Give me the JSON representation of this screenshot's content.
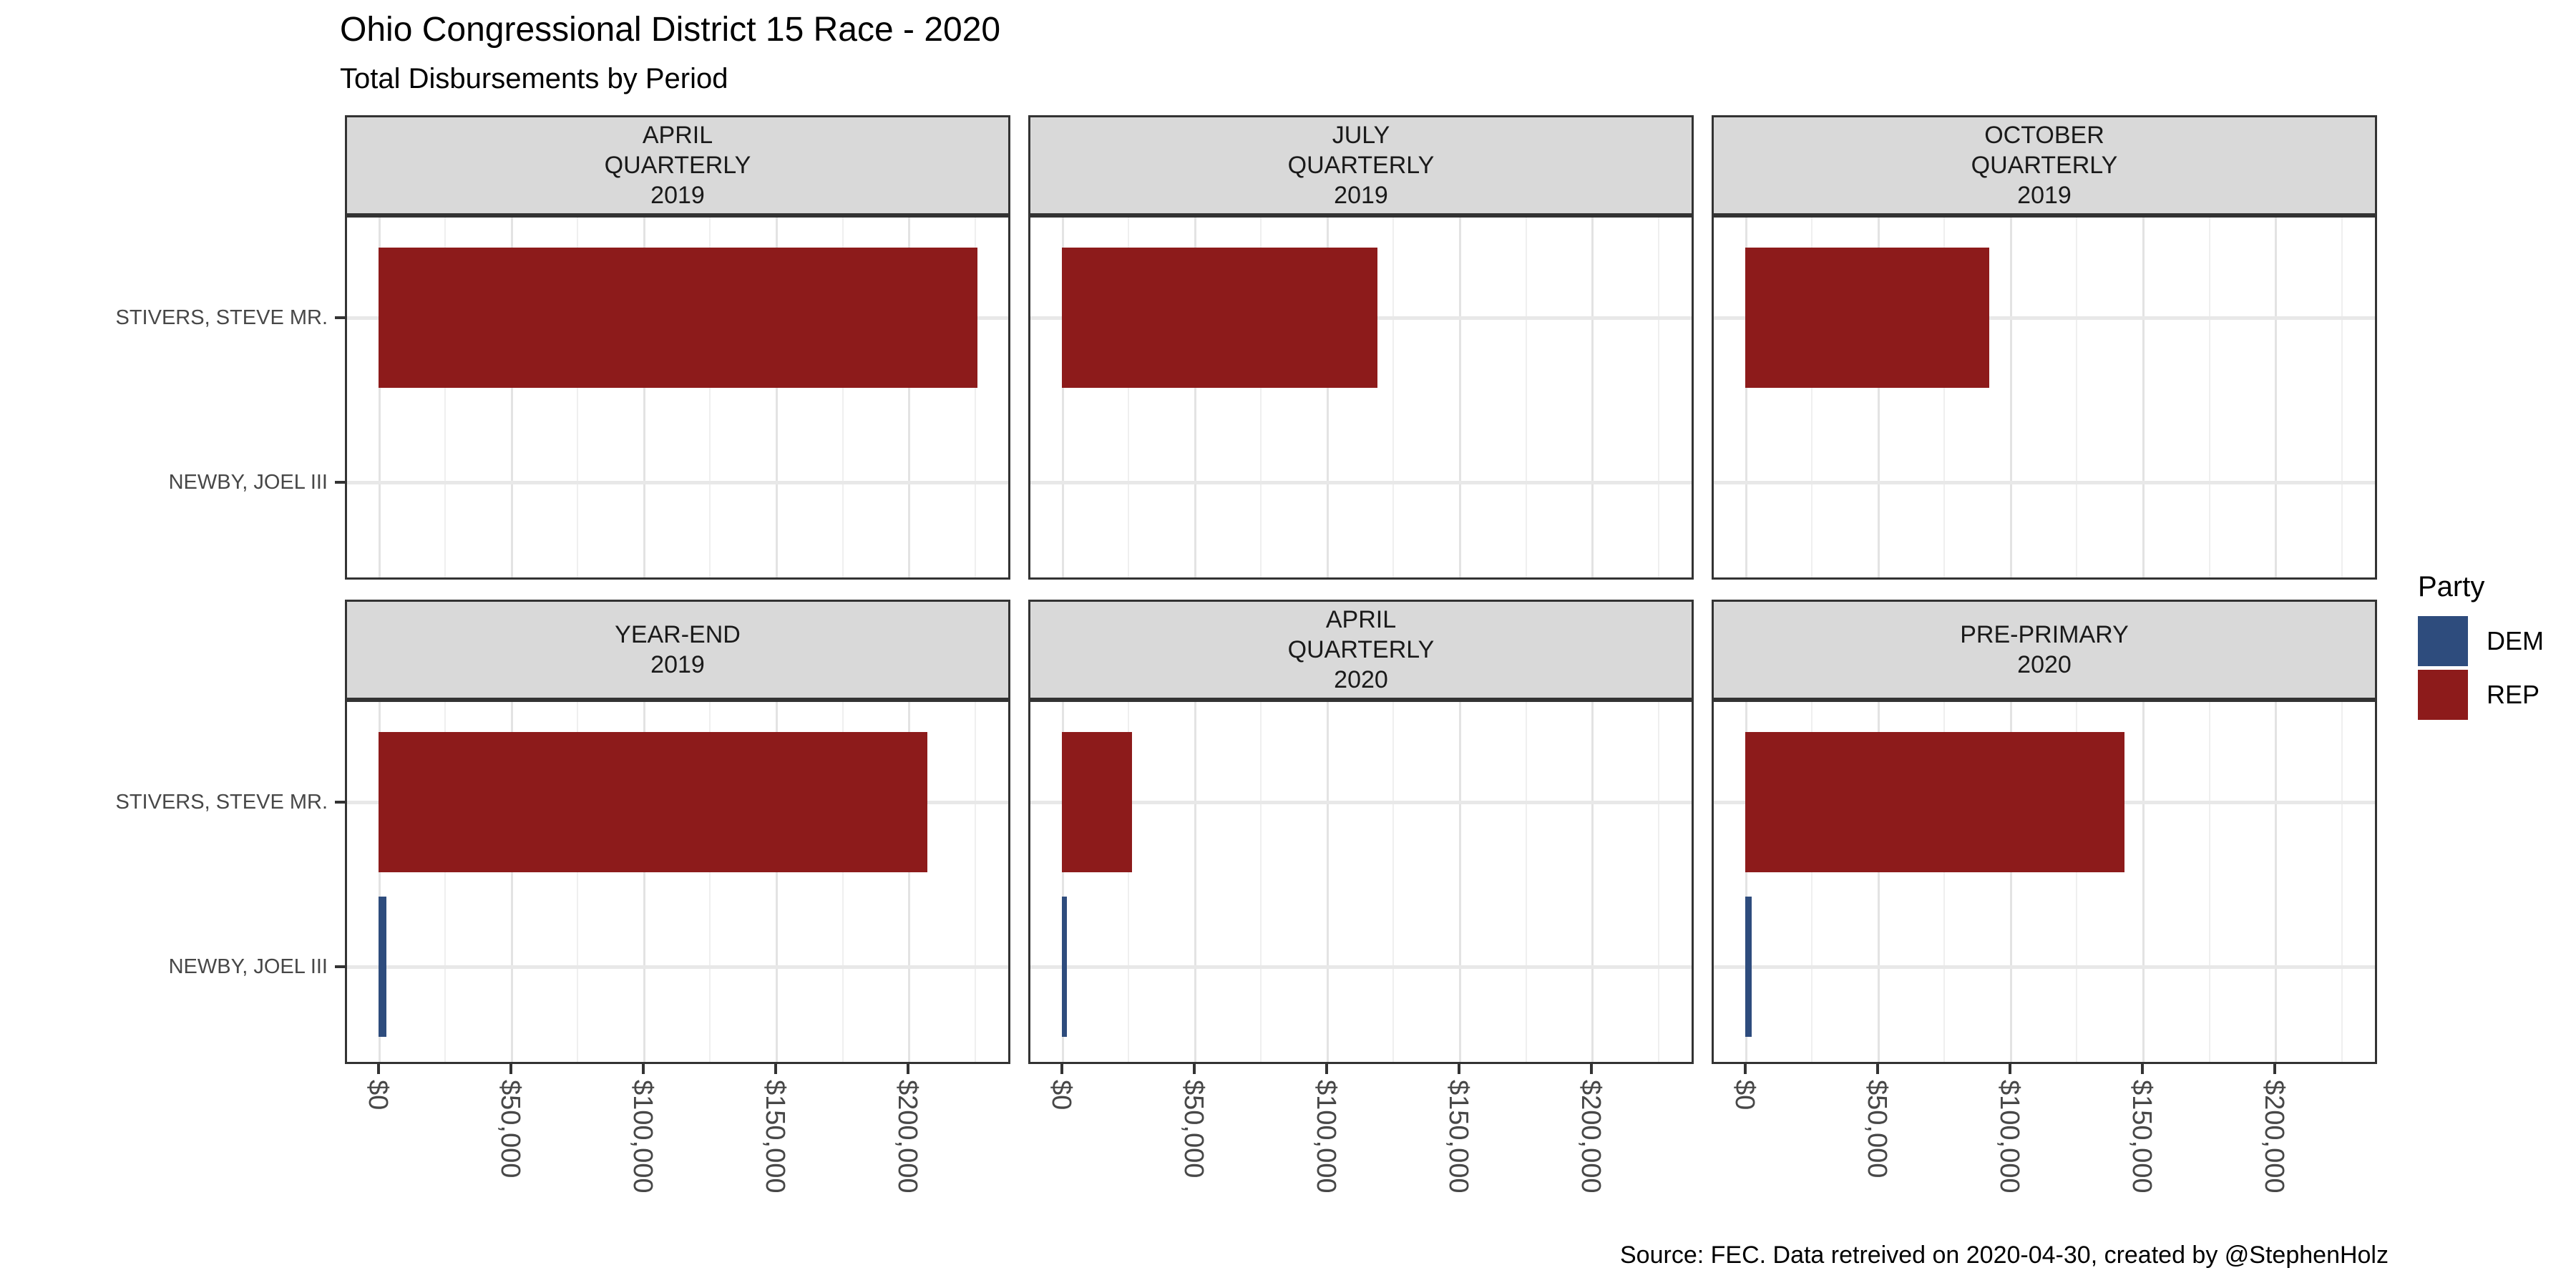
{
  "header": {
    "title": "Ohio Congressional District 15 Race - 2020",
    "subtitle": "Total Disbursements by Period"
  },
  "caption": "Source: FEC. Data retreived on 2020-04-30, created by @StephenHolz",
  "legend": {
    "title": "Party",
    "items": [
      {
        "label": "DEM",
        "color": "#2E4C7D"
      },
      {
        "label": "REP",
        "color": "#8D1B1B"
      }
    ]
  },
  "colors": {
    "dem": "#2E4C7D",
    "rep": "#8D1B1B",
    "strip_bg": "#D9D9D9",
    "panel_border": "#333333",
    "grid_major": "#E3E3E3",
    "grid_minor": "#EFEFEF",
    "grid_row": "#E8E8E8",
    "axis_text": "#474747"
  },
  "chart_data": {
    "type": "bar",
    "orientation": "horizontal",
    "title": "Ohio Congressional District 15 Race - 2020",
    "subtitle": "Total Disbursements by Period",
    "categories": [
      "STIVERS, STEVE MR.",
      "NEWBY, JOEL III"
    ],
    "x_tick_labels": [
      "$0",
      "$50,000",
      "$100,000",
      "$150,000",
      "$200,000"
    ],
    "x_tick_values": [
      0,
      50000,
      100000,
      150000,
      200000
    ],
    "x_max": 226000,
    "xlim": [
      0,
      226000
    ],
    "grid": "major+minor",
    "legend_position": "right",
    "legend_title": "Party",
    "facets": [
      {
        "label_lines": [
          "APRIL",
          "QUARTERLY",
          "2019"
        ],
        "bars": [
          {
            "candidate": "STIVERS, STEVE MR.",
            "party": "REP",
            "value": 226000
          },
          {
            "candidate": "NEWBY, JOEL III",
            "party": "DEM",
            "value": null
          }
        ]
      },
      {
        "label_lines": [
          "JULY",
          "QUARTERLY",
          "2019"
        ],
        "bars": [
          {
            "candidate": "STIVERS, STEVE MR.",
            "party": "REP",
            "value": 119000
          },
          {
            "candidate": "NEWBY, JOEL III",
            "party": "DEM",
            "value": null
          }
        ]
      },
      {
        "label_lines": [
          "OCTOBER",
          "QUARTERLY",
          "2019"
        ],
        "bars": [
          {
            "candidate": "STIVERS, STEVE MR.",
            "party": "REP",
            "value": 92000
          },
          {
            "candidate": "NEWBY, JOEL III",
            "party": "DEM",
            "value": null
          }
        ]
      },
      {
        "label_lines": [
          "YEAR-END",
          "2019"
        ],
        "bars": [
          {
            "candidate": "STIVERS, STEVE MR.",
            "party": "REP",
            "value": 207000
          },
          {
            "candidate": "NEWBY, JOEL III",
            "party": "DEM",
            "value": 3000
          }
        ]
      },
      {
        "label_lines": [
          "APRIL",
          "QUARTERLY",
          "2020"
        ],
        "bars": [
          {
            "candidate": "STIVERS, STEVE MR.",
            "party": "REP",
            "value": 26500
          },
          {
            "candidate": "NEWBY, JOEL III",
            "party": "DEM",
            "value": 1800
          }
        ]
      },
      {
        "label_lines": [
          "PRE-PRIMARY",
          "2020"
        ],
        "bars": [
          {
            "candidate": "STIVERS, STEVE MR.",
            "party": "REP",
            "value": 143000
          },
          {
            "candidate": "NEWBY, JOEL III",
            "party": "DEM",
            "value": 2500
          }
        ]
      }
    ]
  }
}
